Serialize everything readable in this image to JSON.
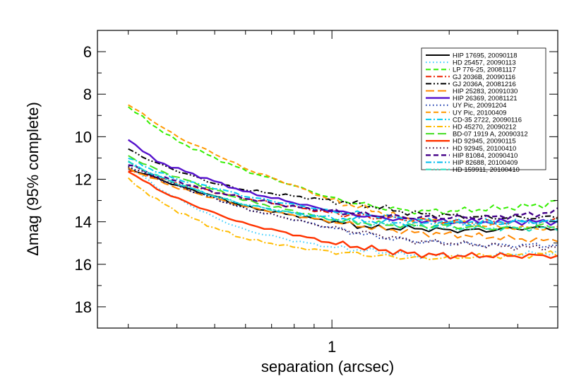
{
  "chart_data": {
    "type": "line",
    "xlabel": "separation (arcsec)",
    "ylabel": "Δmag (95% complete)",
    "xscale": "log",
    "xlim": [
      0.25,
      3.8
    ],
    "ylim": [
      19,
      5
    ],
    "y_inverted": true,
    "xtick_labels": [
      {
        "value": 1,
        "label": "1"
      }
    ],
    "ytick_labels": [
      {
        "value": 6,
        "label": "6"
      },
      {
        "value": 8,
        "label": "8"
      },
      {
        "value": 10,
        "label": "10"
      },
      {
        "value": 12,
        "label": "12"
      },
      {
        "value": 14,
        "label": "14"
      },
      {
        "value": 16,
        "label": "16"
      },
      {
        "value": 18,
        "label": "18"
      }
    ],
    "legend_position": "top-right",
    "x": [
      0.3,
      0.35,
      0.4,
      0.5,
      0.6,
      0.8,
      1.0,
      1.3,
      1.6,
      2.0,
      2.5,
      3.0,
      3.5,
      3.8
    ],
    "series": [
      {
        "name": "HIP 17695, 20090118",
        "color": "#000000",
        "dash": "solid",
        "width": 2,
        "values": [
          11.5,
          11.9,
          12.3,
          12.8,
          13.3,
          13.7,
          14.0,
          14.3,
          14.3,
          14.4,
          14.4,
          14.3,
          14.3,
          14.3
        ]
      },
      {
        "name": "HD 25457, 20090113",
        "color": "#33ccff",
        "dash": "dot",
        "width": 2,
        "values": [
          11.3,
          12.3,
          12.9,
          13.8,
          14.4,
          14.9,
          15.2,
          15.4,
          15.6,
          15.6,
          15.6,
          15.5,
          15.5,
          15.4
        ]
      },
      {
        "name": "LP 776-25, 20081117",
        "color": "#33ee00",
        "dash": "dash",
        "width": 2,
        "values": [
          8.6,
          9.5,
          10.2,
          11.0,
          11.6,
          12.3,
          12.9,
          13.3,
          13.5,
          13.5,
          13.4,
          13.3,
          13.2,
          13.0
        ]
      },
      {
        "name": "GJ 2036B, 20090116",
        "color": "#ee2200",
        "dash": "dashdot",
        "width": 2,
        "values": [
          11.6,
          11.9,
          12.2,
          12.6,
          12.9,
          13.3,
          13.6,
          13.8,
          13.9,
          14.0,
          14.0,
          14.0,
          14.0,
          13.9
        ]
      },
      {
        "name": "GJ 2036A, 20081216",
        "color": "#000000",
        "dash": "dashdotdot",
        "width": 2,
        "values": [
          10.6,
          11.2,
          11.6,
          12.2,
          12.5,
          12.8,
          13.0,
          13.3,
          13.6,
          13.7,
          13.8,
          13.8,
          13.8,
          13.8
        ]
      },
      {
        "name": "HIP 25283, 20091030",
        "color": "#ff8800",
        "dash": "longdash",
        "width": 2,
        "values": [
          11.5,
          12.0,
          12.4,
          12.9,
          13.3,
          13.7,
          14.0,
          14.3,
          14.5,
          14.6,
          14.7,
          14.8,
          14.9,
          14.8
        ]
      },
      {
        "name": "HIP 26369, 20081121",
        "color": "#5511cc",
        "dash": "solid",
        "width": 2.4,
        "values": [
          10.1,
          11.1,
          11.5,
          12.1,
          12.6,
          13.1,
          13.5,
          13.8,
          13.9,
          14.0,
          14.0,
          14.0,
          14.0,
          14.0
        ]
      },
      {
        "name": "UY Pic, 20091204",
        "color": "#1133aa",
        "dash": "dot",
        "width": 2,
        "values": [
          11.4,
          11.9,
          12.3,
          12.9,
          13.4,
          13.9,
          14.3,
          14.7,
          14.9,
          15.0,
          15.1,
          15.1,
          15.1,
          15.1
        ]
      },
      {
        "name": "UY Pic, 20100409",
        "color": "#ff9900",
        "dash": "dash",
        "width": 2,
        "values": [
          8.5,
          9.3,
          10.0,
          10.8,
          11.5,
          12.3,
          13.0,
          13.5,
          13.9,
          14.0,
          14.2,
          14.3,
          14.3,
          14.3
        ]
      },
      {
        "name": "CD-35 2722, 20090116",
        "color": "#00ccee",
        "dash": "dashdot",
        "width": 2,
        "values": [
          11.0,
          11.6,
          12.0,
          12.4,
          12.8,
          13.2,
          13.5,
          13.7,
          13.9,
          14.0,
          14.0,
          14.0,
          14.0,
          14.0
        ]
      },
      {
        "name": "HD 45270, 20090212",
        "color": "#ffbb00",
        "dash": "dashdot",
        "width": 2,
        "values": [
          12.0,
          12.9,
          13.5,
          14.3,
          14.8,
          15.2,
          15.4,
          15.6,
          15.7,
          15.7,
          15.6,
          15.6,
          15.5,
          15.5
        ]
      },
      {
        "name": "BD-07 1919 A, 20090312",
        "color": "#44dd22",
        "dash": "longdash",
        "width": 2,
        "values": [
          10.9,
          11.5,
          11.9,
          12.5,
          13.0,
          13.5,
          13.9,
          14.1,
          14.2,
          14.2,
          14.3,
          14.3,
          14.2,
          14.2
        ]
      },
      {
        "name": "HD 92945, 20090115",
        "color": "#ff3300",
        "dash": "solid",
        "width": 2.4,
        "values": [
          11.6,
          12.4,
          12.9,
          13.6,
          14.1,
          14.6,
          15.0,
          15.3,
          15.5,
          15.6,
          15.6,
          15.6,
          15.6,
          15.6
        ]
      },
      {
        "name": "HD 92945, 20100410",
        "color": "#330033",
        "dash": "dot",
        "width": 2,
        "values": [
          11.4,
          11.9,
          12.3,
          12.9,
          13.4,
          13.9,
          14.3,
          14.6,
          14.9,
          15.0,
          15.1,
          15.2,
          15.2,
          15.2
        ]
      },
      {
        "name": "HIP 81084, 20090410",
        "color": "#440088",
        "dash": "dash",
        "width": 2.4,
        "values": [
          11.3,
          11.8,
          12.1,
          12.6,
          12.9,
          13.3,
          13.5,
          13.7,
          13.8,
          13.8,
          13.8,
          13.7,
          13.6,
          13.5
        ]
      },
      {
        "name": "HIP 82688, 20100409",
        "color": "#00bbee",
        "dash": "dashdot",
        "width": 2,
        "values": [
          11.2,
          11.8,
          12.2,
          12.8,
          13.2,
          13.6,
          13.8,
          14.0,
          14.1,
          14.1,
          14.1,
          14.0,
          14.0,
          14.0
        ]
      },
      {
        "name": "HD 159911, 20100410",
        "color": "#22ddbb",
        "dash": "dashdotdot",
        "width": 2,
        "values": [
          11.2,
          11.8,
          12.2,
          12.8,
          13.2,
          13.6,
          13.9,
          14.1,
          14.2,
          14.3,
          14.3,
          14.3,
          14.3,
          14.3
        ]
      }
    ]
  }
}
